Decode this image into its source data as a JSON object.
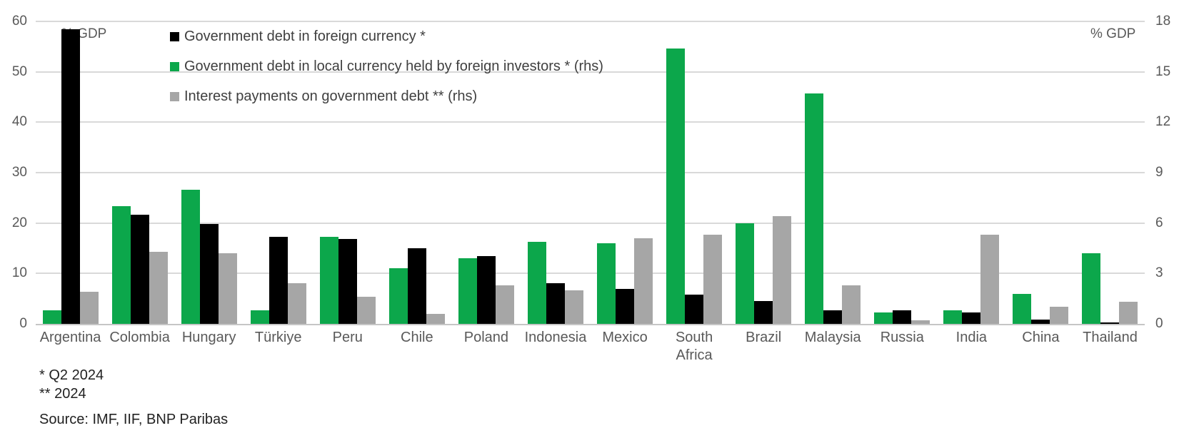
{
  "chart_data": {
    "type": "bar",
    "title": "",
    "left_axis": {
      "label": "% GDP",
      "max": 60,
      "ticks": [
        60,
        50,
        40,
        30,
        20,
        10,
        0
      ]
    },
    "right_axis": {
      "label": "% GDP",
      "max": 18,
      "ticks": [
        18,
        15,
        12,
        9,
        6,
        3,
        0
      ]
    },
    "categories": [
      "Argentina",
      "Colombia",
      "Hungary",
      "Türkiye",
      "Peru",
      "Chile",
      "Poland",
      "Indonesia",
      "Mexico",
      "South Africa",
      "Brazil",
      "Malaysia",
      "Russia",
      "India",
      "China",
      "Thailand"
    ],
    "series": [
      {
        "key": "foreign-currency-debt",
        "name": "Government debt in foreign currency *",
        "color": "#000000",
        "axis": "left",
        "values": [
          58.5,
          21.7,
          19.8,
          17.2,
          16.8,
          15.0,
          13.4,
          8.1,
          7.0,
          5.8,
          4.5,
          2.7,
          2.7,
          2.2,
          0.8,
          0.3
        ]
      },
      {
        "key": "local-currency-foreign-held",
        "name": "Government debt in local currency held by foreign investors * (rhs)",
        "color": "#0ca74b",
        "axis": "right",
        "values": [
          0.8,
          7.0,
          8.0,
          0.8,
          5.2,
          3.3,
          3.9,
          4.9,
          4.8,
          16.4,
          6.0,
          13.7,
          0.7,
          0.8,
          1.8,
          4.2
        ]
      },
      {
        "key": "interest-payments",
        "name": "Interest payments on government debt ** (rhs)",
        "color": "#a6a6a6",
        "axis": "right",
        "values": [
          1.9,
          4.3,
          4.2,
          2.4,
          1.6,
          0.6,
          2.3,
          2.0,
          5.1,
          5.3,
          6.4,
          2.3,
          0.2,
          5.3,
          1.0,
          1.3
        ]
      }
    ],
    "plot_order": [
      1,
      0,
      2
    ],
    "legend_position": "top-left-inside",
    "grid": true
  },
  "footnotes": {
    "line1": "* Q2 2024",
    "line2": "** 2024",
    "source": "Source: IMF, IIF, BNP Paribas"
  }
}
